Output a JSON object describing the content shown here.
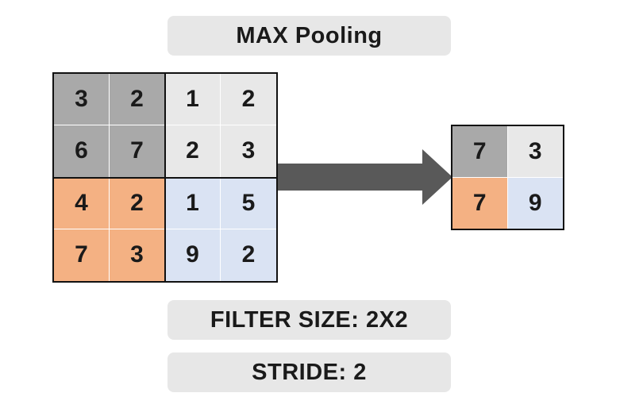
{
  "title": "MAX Pooling",
  "filter_size_label": "FILTER SIZE: 2X2",
  "stride_label": "STRIDE: 2",
  "colors": {
    "top_left": "#a9a9a9",
    "top_right": "#e8e8e8",
    "bottom_left": "#f4b183",
    "bottom_right": "#dae3f3",
    "arrow": "#595959",
    "pill": "#e7e7e7"
  },
  "input_matrix": [
    [
      "3",
      "2",
      "1",
      "2"
    ],
    [
      "6",
      "7",
      "2",
      "3"
    ],
    [
      "4",
      "2",
      "1",
      "5"
    ],
    [
      "7",
      "3",
      "9",
      "2"
    ]
  ],
  "output_matrix": [
    [
      "7",
      "3"
    ],
    [
      "7",
      "9"
    ]
  ]
}
